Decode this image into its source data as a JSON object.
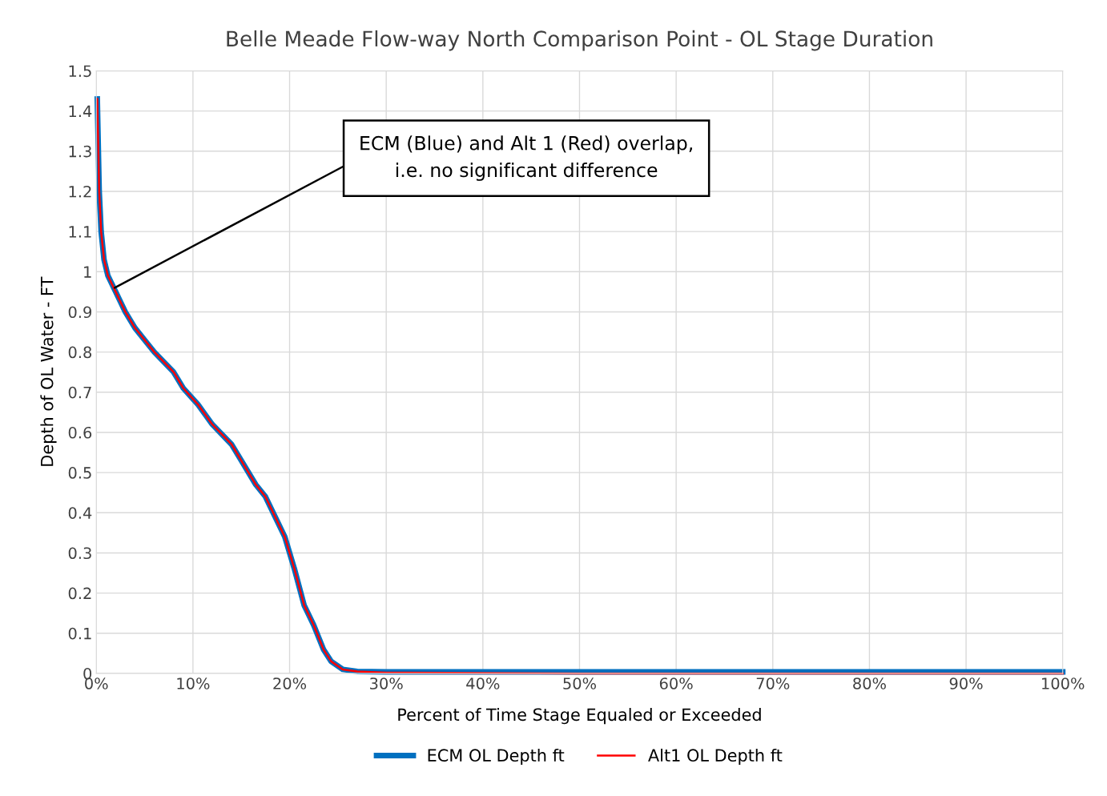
{
  "chart_data": {
    "type": "line",
    "title": "Belle Meade Flow-way North Comparison Point - OL Stage Duration",
    "xlabel": "Percent of Time Stage Equaled or Exceeded",
    "ylabel": "Depth of OL Water - FT",
    "x": [
      0.1,
      0.3,
      0.5,
      0.8,
      1.2,
      2,
      3,
      4,
      5,
      6,
      8,
      9,
      10.5,
      12,
      14,
      15,
      16.5,
      17.5,
      18.5,
      19.5,
      20.5,
      21.5,
      22.5,
      23.5,
      24.3,
      25.5,
      27,
      30,
      50,
      100
    ],
    "series": [
      {
        "name": "ECM OL Depth ft",
        "color": "#0070c0",
        "values": [
          1.43,
          1.2,
          1.1,
          1.03,
          0.99,
          0.95,
          0.9,
          0.86,
          0.83,
          0.8,
          0.75,
          0.71,
          0.67,
          0.62,
          0.57,
          0.53,
          0.47,
          0.44,
          0.39,
          0.34,
          0.26,
          0.17,
          0.12,
          0.06,
          0.03,
          0.01,
          0.005,
          0.004,
          0.004,
          0.004
        ]
      },
      {
        "name": "Alt1 OL Depth ft",
        "color": "#ff0000",
        "values": [
          1.43,
          1.2,
          1.1,
          1.03,
          0.99,
          0.95,
          0.9,
          0.86,
          0.83,
          0.8,
          0.75,
          0.71,
          0.67,
          0.62,
          0.57,
          0.53,
          0.47,
          0.44,
          0.39,
          0.34,
          0.26,
          0.17,
          0.12,
          0.06,
          0.03,
          0.01,
          0.005,
          0.002,
          0.0,
          0.0
        ]
      }
    ],
    "xlim": [
      0,
      100
    ],
    "ylim": [
      0,
      1.5
    ],
    "xticks": [
      {
        "value": 0,
        "label": "0%"
      },
      {
        "value": 10,
        "label": "10%"
      },
      {
        "value": 20,
        "label": "20%"
      },
      {
        "value": 30,
        "label": "30%"
      },
      {
        "value": 40,
        "label": "40%"
      },
      {
        "value": 50,
        "label": "50%"
      },
      {
        "value": 60,
        "label": "60%"
      },
      {
        "value": 70,
        "label": "70%"
      },
      {
        "value": 80,
        "label": "80%"
      },
      {
        "value": 90,
        "label": "90%"
      },
      {
        "value": 100,
        "label": "100%"
      }
    ],
    "yticks": [
      0,
      0.1,
      0.2,
      0.3,
      0.4,
      0.5,
      0.6,
      0.7,
      0.8,
      0.9,
      1,
      1.1,
      1.2,
      1.3,
      1.4,
      1.5
    ],
    "grid": true,
    "legend": "bottom",
    "marker": "none",
    "line_style": "solid",
    "annotations": [
      {
        "text": "ECM (Blue) and Alt 1 (Red) overlap,\ni.e. no significant difference",
        "x": 1.9,
        "y": 0.96
      }
    ]
  }
}
